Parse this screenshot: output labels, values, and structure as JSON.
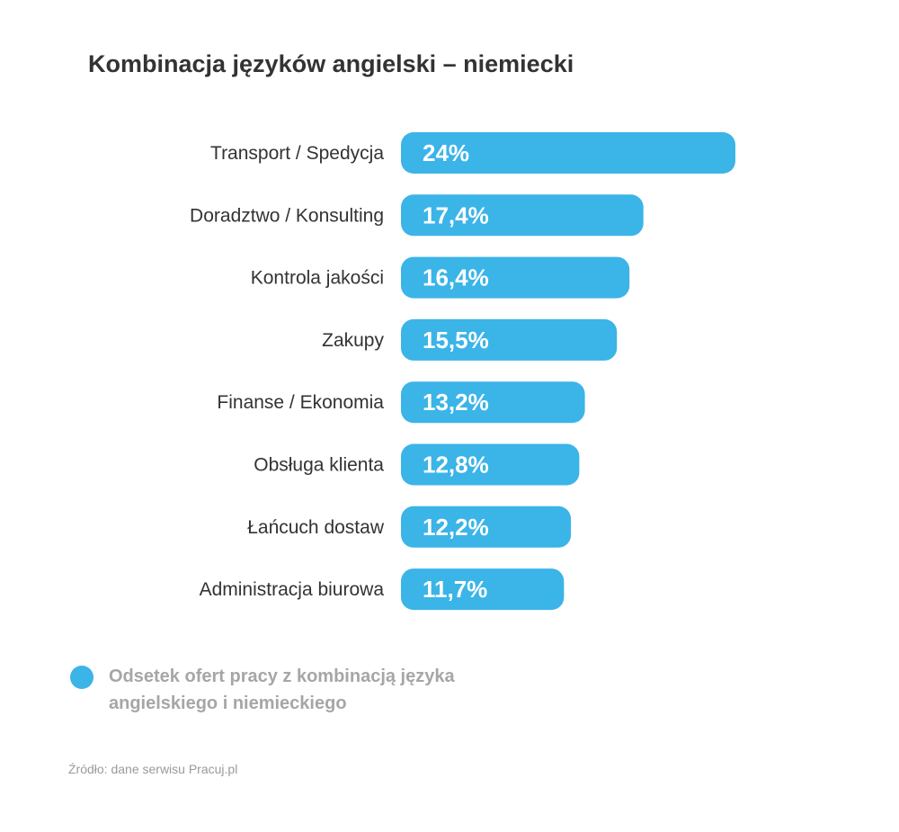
{
  "title": "Kombinacja języków angielski – niemiecki",
  "legend": {
    "label": "Odsetek ofert pracy z kombinacją języka angielskiego i niemieckiego",
    "color": "#3bb4e8"
  },
  "source": "Źródło: dane serwisu Pracuj.pl",
  "chart_data": {
    "type": "bar",
    "orientation": "horizontal",
    "categories": [
      "Transport / Spedycja",
      "Doradztwo / Konsulting",
      "Kontrola jakości",
      "Zakupy",
      "Finanse / Ekonomia",
      "Obsługa klienta",
      "Łańcuch dostaw",
      "Administracja biurowa"
    ],
    "values": [
      24,
      17.4,
      16.4,
      15.5,
      13.2,
      12.8,
      12.2,
      11.7
    ],
    "data_labels": [
      "24%",
      "17,4%",
      "16,4%",
      "15,5%",
      "13,2%",
      "12,8%",
      "12,2%",
      "11,7%"
    ],
    "unit": "%",
    "bar_color": "#3bb4e8",
    "label_color": "#ffffff",
    "category_color": "#333333",
    "grid": false,
    "legend_position": "bottom-left"
  }
}
